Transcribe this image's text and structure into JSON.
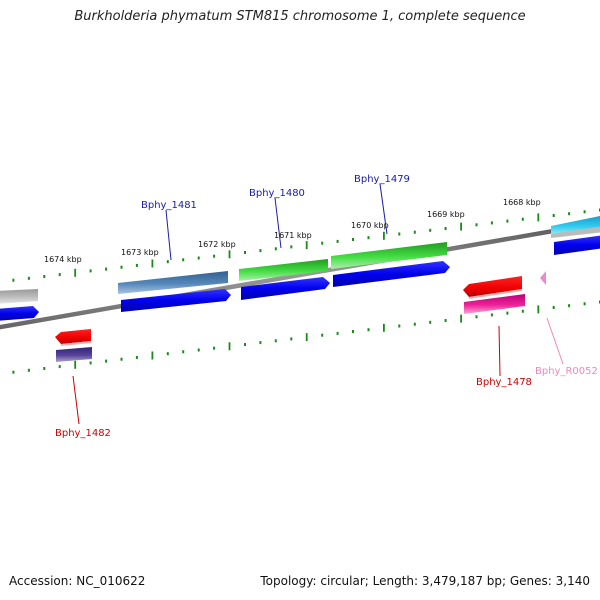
{
  "title": "Burkholderia phymatum STM815 chromosome 1, complete sequence",
  "footer": {
    "accession": "Accession: NC_010622",
    "summary": "Topology: circular; Length: 3,479,187 bp; Genes: 3,140"
  },
  "scale_labels": [
    "1674 kbp",
    "1673 kbp",
    "1672 kbp",
    "1671 kbp",
    "1670 kbp",
    "1669 kbp",
    "1668 kbp"
  ],
  "gene_labels": [
    {
      "name": "Bphy_1481",
      "color": "#1a1aaa"
    },
    {
      "name": "Bphy_1480",
      "color": "#1a1aaa"
    },
    {
      "name": "Bphy_1479",
      "color": "#1a1aaa"
    },
    {
      "name": "Bphy_1482",
      "color": "#cc0000"
    },
    {
      "name": "Bphy_1478",
      "color": "#cc0000"
    },
    {
      "name": "Bphy_R0052",
      "color": "#ee88bb"
    }
  ],
  "colors": {
    "backbone": "#777777",
    "tick": "#1a8a1a",
    "blue_feature": "#0000ee",
    "steelblue_feature": "#4477aa",
    "green_feature": "#33cc33",
    "red_feature": "#ee0000",
    "magenta_feature": "#dd1188",
    "navy_feature": "#443388",
    "cyan_feature": "#22bbdd",
    "gray_feature": "#bbbbbb",
    "pink_feature": "#ee88cc"
  }
}
